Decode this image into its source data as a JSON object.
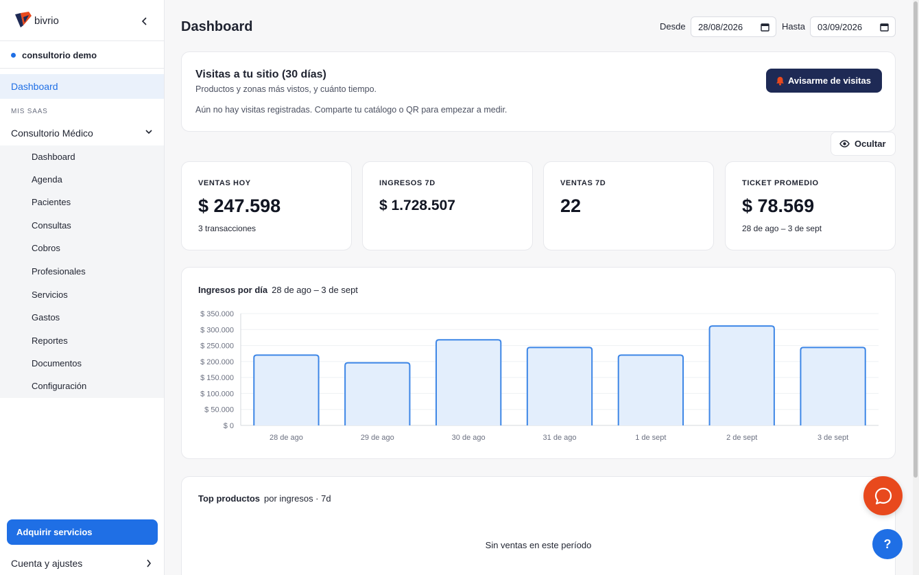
{
  "brand": {
    "name": "bivrio"
  },
  "sidebar": {
    "workspace": "consultorio demo",
    "active_item": "Dashboard",
    "section_label": "MIS SAAS",
    "group": "Consultorio Médico",
    "items": [
      {
        "label": "Dashboard"
      },
      {
        "label": "Agenda"
      },
      {
        "label": "Pacientes"
      },
      {
        "label": "Consultas"
      },
      {
        "label": "Cobros"
      },
      {
        "label": "Profesionales"
      },
      {
        "label": "Servicios"
      },
      {
        "label": "Gastos"
      },
      {
        "label": "Reportes"
      },
      {
        "label": "Documentos"
      },
      {
        "label": "Configuración"
      }
    ],
    "cta_label": "Adquirir servicios",
    "account_label": "Cuenta y ajustes"
  },
  "header": {
    "title": "Dashboard",
    "from_label": "Desde",
    "from_value": "28/08/2026",
    "to_label": "Hasta",
    "to_value": "03/09/2026"
  },
  "visits": {
    "title": "Visitas a tu sitio (30 días)",
    "subtitle": "Productos y zonas más vistos, y cuánto tiempo.",
    "empty_text": "Aún no hay visitas registradas. Comparte tu catálogo o QR para empezar a medir.",
    "notify_label": "Avisarme de visitas"
  },
  "hide_label": "Ocultar",
  "kpis": [
    {
      "label": "VENTAS HOY",
      "value": "$ 247.598",
      "sub": "3 transacciones"
    },
    {
      "label": "INGRESOS 7D",
      "value": "$ 1.728.507",
      "sub": ""
    },
    {
      "label": "VENTAS 7D",
      "value": "22",
      "sub": ""
    },
    {
      "label": "TICKET PROMEDIO",
      "value": "$ 78.569",
      "sub": "28 de ago – 3 de sept"
    }
  ],
  "chart_card": {
    "title": "Ingresos por día",
    "range": "28 de ago – 3 de sept"
  },
  "chart_data": {
    "type": "bar",
    "categories": [
      "28 de ago",
      "29 de ago",
      "30 de ago",
      "31 de ago",
      "1 de sept",
      "2 de sept",
      "3 de sept"
    ],
    "values": [
      220000,
      196000,
      268000,
      244000,
      220000,
      311000,
      244000
    ],
    "ylim": [
      0,
      350000
    ],
    "y_ticks": [
      "$ 0",
      "$ 50.000",
      "$ 100.000",
      "$ 150.000",
      "$ 200.000",
      "$ 250.000",
      "$ 300.000",
      "$ 350.000"
    ],
    "y_tick_values": [
      0,
      50000,
      100000,
      150000,
      200000,
      250000,
      300000,
      350000
    ],
    "grid": true,
    "bar_fill": "#e3eefc",
    "bar_stroke": "#3d86e6"
  },
  "top_products": {
    "title": "Top productos",
    "subtitle": "por ingresos · 7d",
    "empty_text": "Sin ventas en este período"
  },
  "help_label": "?",
  "colors": {
    "accent": "#1f6fe5",
    "navy": "#1e2a55",
    "chat": "#e8491d"
  }
}
